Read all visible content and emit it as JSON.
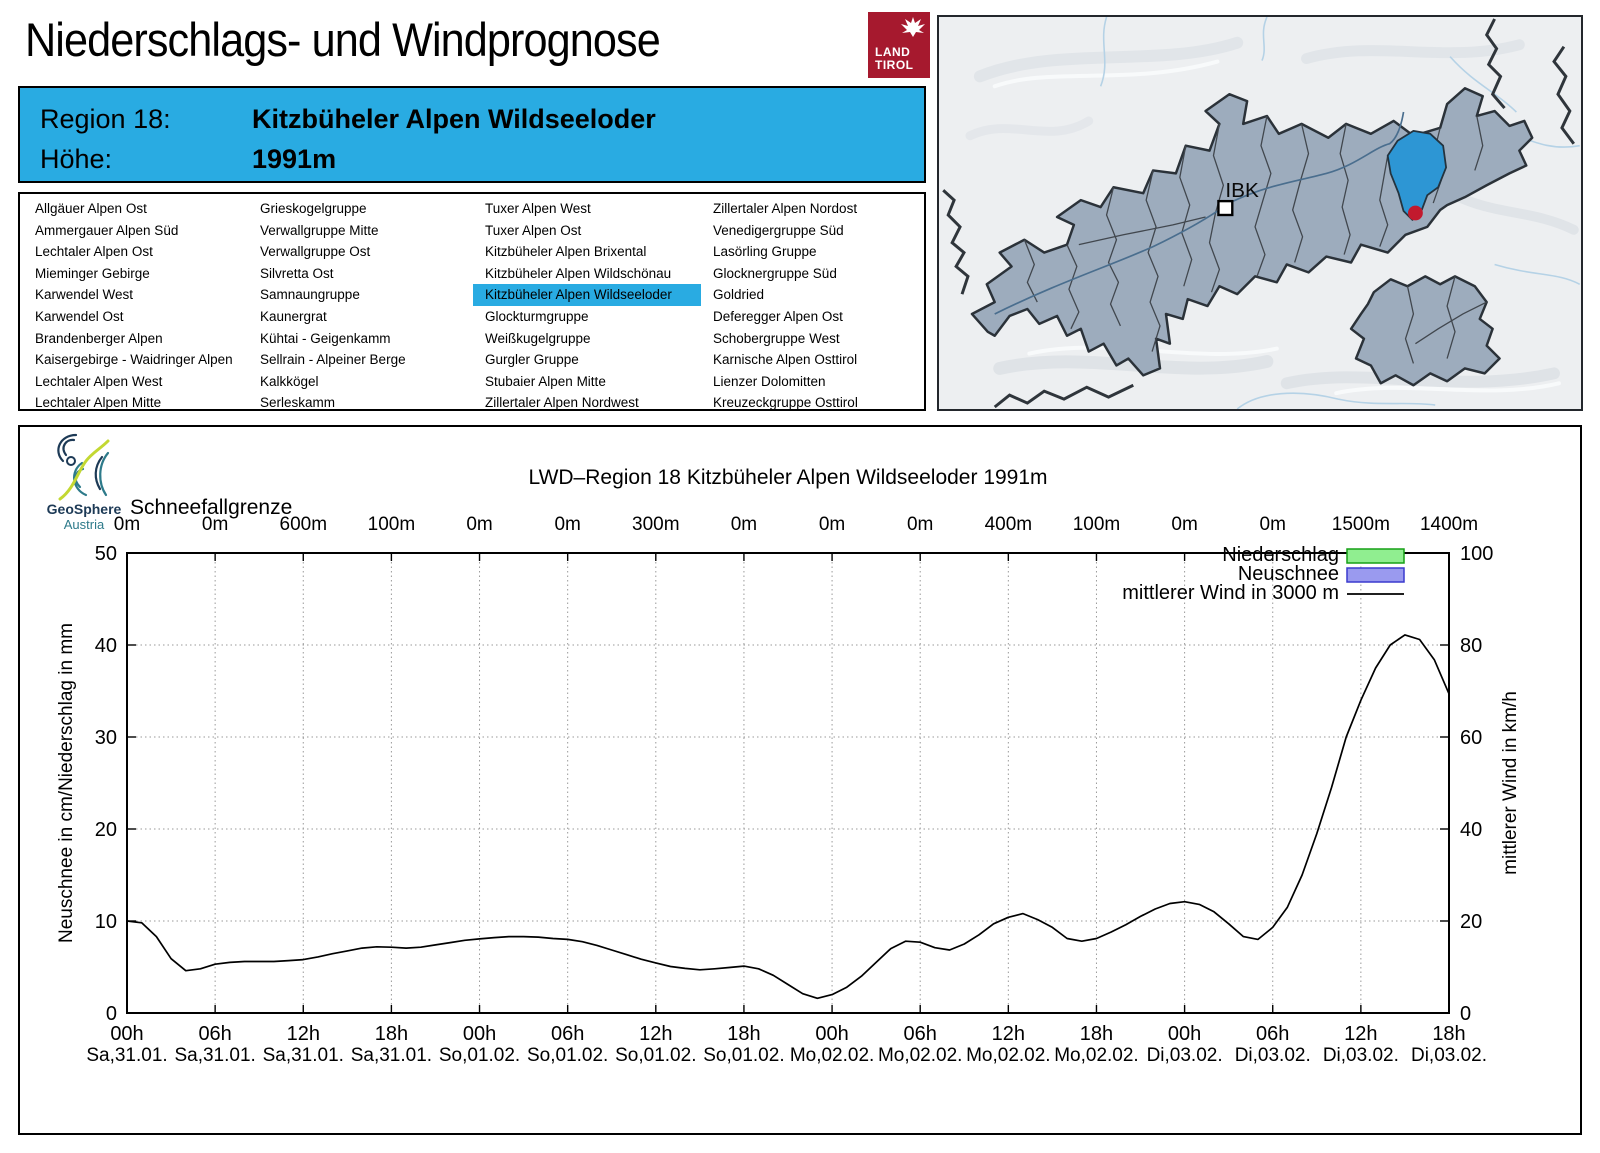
{
  "header": {
    "title": "Niederschlags- und Windprognose",
    "logo": {
      "line1": "LAND",
      "line2": "TIROL",
      "color": "#a6192e"
    },
    "region_label": "Region 18:",
    "region_name": "Kitzbüheler Alpen Wildseeloder",
    "altitude_label": "Höhe:",
    "altitude_value": "1991m",
    "accent_color": "#29abe2"
  },
  "region_list": {
    "selected": "Kitzbüheler Alpen Wildseeloder",
    "columns": [
      [
        "Allgäuer Alpen Ost",
        "Ammergauer Alpen Süd",
        "Lechtaler Alpen Ost",
        "Mieminger Gebirge",
        "Karwendel West",
        "Karwendel Ost",
        "Brandenberger Alpen",
        "Kaisergebirge - Waidringer Alpen",
        "Lechtaler Alpen West",
        "Lechtaler Alpen Mitte"
      ],
      [
        "Grieskogelgruppe",
        "Verwallgruppe Mitte",
        "Verwallgruppe Ost",
        "Silvretta Ost",
        "Samnaungruppe",
        "Kaunergrat",
        "Kühtai - Geigenkamm",
        "Sellrain - Alpeiner Berge",
        "Kalkkögel",
        "Serleskamm"
      ],
      [
        "Tuxer Alpen West",
        "Tuxer Alpen Ost",
        "Kitzbüheler Alpen Brixental",
        "Kitzbüheler Alpen Wildschönau",
        "Kitzbüheler Alpen Wildseeloder",
        "Glockturmgruppe",
        "Weißkugelgruppe",
        "Gurgler Gruppe",
        "Stubaier Alpen Mitte",
        "Zillertaler Alpen Nordwest"
      ],
      [
        "Zillertaler Alpen Nordost",
        "Venedigergruppe Süd",
        "Lasörling Gruppe",
        "Glocknergruppe Süd",
        "Goldried",
        "Deferegger Alpen Ost",
        "Schobergruppe West",
        "Karnische Alpen Osttirol",
        "Lienzer Dolomitten",
        "Kreuzeckgruppe Osttirol"
      ]
    ]
  },
  "map": {
    "city_label": "IBK",
    "colors": {
      "region_fill": "#9dacbd",
      "highlight": "#2d96d4",
      "marker": "#c21a2e"
    }
  },
  "provider_logo": {
    "line1": "GeoSphere",
    "line2": "Austria"
  },
  "chart_data": {
    "type": "line",
    "title": "LWD–Region 18 Kitzbüheler Alpen Wildseeloder 1991m",
    "snowline_label": "Schneefallgrenze",
    "snowline_values": [
      "0m",
      "0m",
      "600m",
      "100m",
      "0m",
      "0m",
      "300m",
      "0m",
      "0m",
      "0m",
      "400m",
      "100m",
      "0m",
      "0m",
      "1500m",
      "1400m"
    ],
    "x_tick_hours": [
      "00h",
      "06h",
      "12h",
      "18h",
      "00h",
      "06h",
      "12h",
      "18h",
      "00h",
      "06h",
      "12h",
      "18h",
      "00h",
      "06h",
      "12h",
      "18h"
    ],
    "x_tick_dates": [
      "Sa,31.01.",
      "Sa,31.01.",
      "Sa,31.01.",
      "Sa,31.01.",
      "So,01.02.",
      "So,01.02.",
      "So,01.02.",
      "So,01.02.",
      "Mo,02.02.",
      "Mo,02.02.",
      "Mo,02.02.",
      "Mo,02.02.",
      "Di,03.02.",
      "Di,03.02.",
      "Di,03.02.",
      "Di,03.02."
    ],
    "ylabel_left": "Neuschnee in cm/Niederschlag in mm",
    "ylabel_right": "mittlerer Wind in km/h",
    "ylim_left": [
      0,
      50
    ],
    "ylim_right": [
      0,
      100
    ],
    "yticks_left": [
      0,
      10,
      20,
      30,
      40,
      50
    ],
    "yticks_right": [
      0,
      20,
      40,
      60,
      80,
      100
    ],
    "grid": true,
    "legend_position": "top-right",
    "legend": [
      {
        "label": "Niederschlag",
        "key": "box",
        "fill": "#90ee90",
        "stroke": "#17a017"
      },
      {
        "label": "Neuschnee",
        "key": "box",
        "fill": "#9a9aef",
        "stroke": "#3a3acd"
      },
      {
        "label": "mittlerer Wind in 3000 m",
        "key": "line",
        "stroke": "#000000"
      }
    ],
    "bars_note": "No Niederschlag (mm) or Neuschnee (cm) bars are visible in the forecast period (all 0)",
    "series": [
      {
        "name": "mittlerer Wind in 3000 m",
        "axis": "right",
        "unit": "km/h",
        "start": "Sa 31.01. 00h",
        "step_hours": 1,
        "values": [
          20.0,
          19.6,
          16.6,
          11.8,
          9.2,
          9.6,
          10.6,
          11.0,
          11.2,
          11.2,
          11.2,
          11.4,
          11.6,
          12.2,
          12.9,
          13.5,
          14.1,
          14.4,
          14.3,
          14.1,
          14.3,
          14.8,
          15.3,
          15.8,
          16.1,
          16.4,
          16.6,
          16.6,
          16.5,
          16.2,
          16.0,
          15.5,
          14.7,
          13.7,
          12.7,
          11.7,
          10.9,
          10.1,
          9.7,
          9.4,
          9.6,
          9.9,
          10.2,
          9.6,
          8.2,
          6.2,
          4.2,
          3.2,
          4.0,
          5.6,
          8.0,
          11.0,
          14.0,
          15.6,
          15.4,
          14.2,
          13.7,
          15.0,
          17.0,
          19.4,
          20.8,
          21.6,
          20.3,
          18.6,
          16.2,
          15.6,
          16.2,
          17.6,
          19.2,
          21.0,
          22.6,
          23.8,
          24.2,
          23.6,
          22.0,
          19.4,
          16.6,
          16.0,
          18.6,
          23.0,
          30.0,
          39.0,
          49.0,
          60.0,
          68.0,
          75.0,
          80.0,
          82.2,
          81.2,
          76.8,
          69.4
        ]
      }
    ]
  }
}
